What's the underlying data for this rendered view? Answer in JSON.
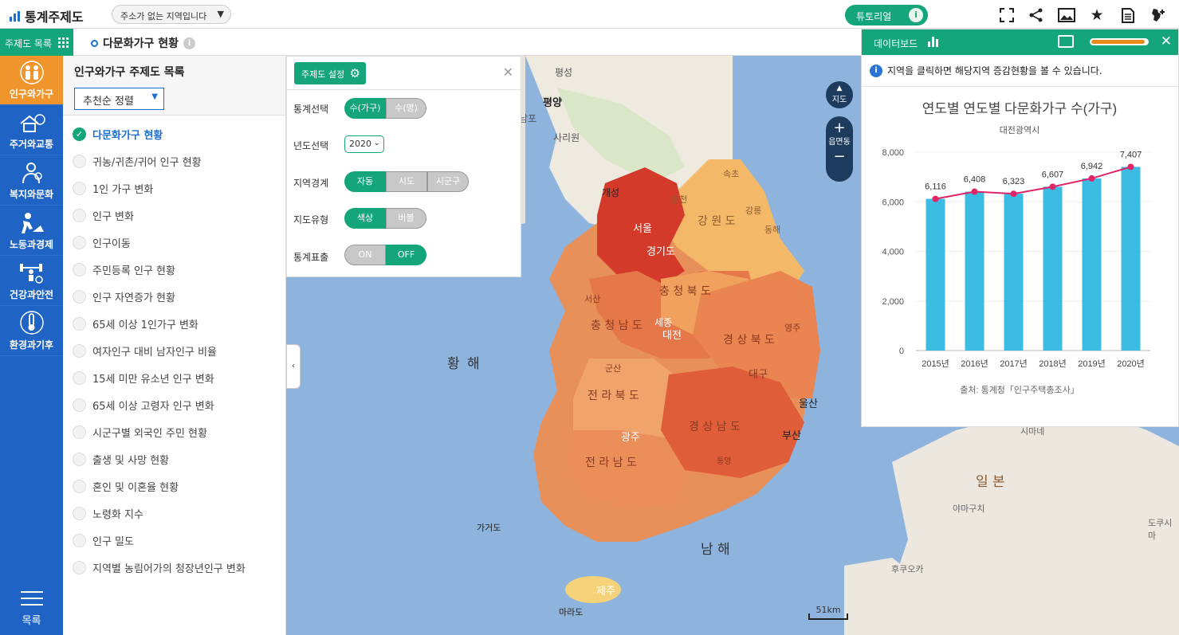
{
  "app": {
    "title": "통계주제도"
  },
  "address": {
    "value": "주소가 없는 지역입니다"
  },
  "tutorial": {
    "label": "튜토리얼"
  },
  "subbar": {
    "menu_label": "주제도 목록",
    "current_title": "다문화가구 현황"
  },
  "nav": {
    "items": [
      {
        "label": "인구와가구"
      },
      {
        "label": "주거와교통"
      },
      {
        "label": "복지와문화"
      },
      {
        "label": "노동과경제"
      },
      {
        "label": "건강과안전"
      },
      {
        "label": "환경과기후"
      }
    ],
    "bottom_label": "목록"
  },
  "list": {
    "title": "인구와가구 주제도 목록",
    "sort": "추천순 정렬",
    "items": [
      "다문화가구 현황",
      "귀농/귀촌/귀어 인구 현황",
      "1인 가구 변화",
      "인구 변화",
      "인구이동",
      "주민등록 인구 현황",
      "인구 자연증가 현황",
      "65세 이상 1인가구 변화",
      "여자인구 대비 남자인구 비율",
      "15세 미만 유소년 인구 변화",
      "65세 이상 고령자 인구 변화",
      "시군구별 외국인 주민 현황",
      "출생 및 사망 현황",
      "혼인 및 이혼율 현황",
      "노령화 지수",
      "인구 밀도",
      "지역별 농림어가의 청장년인구 변화"
    ]
  },
  "settings": {
    "button": "주제도 설정",
    "rows": {
      "stat": {
        "label": "통계선택",
        "options": [
          "수(가구)",
          "수(명)"
        ],
        "selected": "수(가구)"
      },
      "year": {
        "label": "년도선택",
        "value": "2020"
      },
      "region": {
        "label": "지역경계",
        "options": [
          "자동",
          "시도",
          "시군구"
        ],
        "selected": "자동"
      },
      "maptype": {
        "label": "지도유형",
        "options": [
          "색상",
          "버블"
        ],
        "selected": "색상"
      },
      "display": {
        "label": "통계표출",
        "options": [
          "ON",
          "OFF"
        ],
        "selected": "OFF"
      }
    }
  },
  "map": {
    "labels": {
      "pyeongyang": "평양",
      "pyeongseong": "평성",
      "nampo": "남포",
      "sariwon": "사리원",
      "kaesong": "개성",
      "chuncheon": "춘천",
      "seoul": "서울",
      "gyeonggi": "경기도",
      "gangwon": "강 원 도",
      "gangneung": "강릉",
      "donghae": "동해",
      "sokcho": "속초",
      "seosan": "서산",
      "chungbuk": "충 청 북 도",
      "chungnam": "충 청 남 도",
      "sejong": "세종",
      "daejeon": "대전",
      "yeongju": "영주",
      "gyeongbuk": "경 상 북 도",
      "daegu": "대구",
      "gunsan": "군산",
      "jeonbuk": "전 라 북 도",
      "ulsan": "울산",
      "busan": "부산",
      "gyeongnam": "경 상 남 도",
      "gwangju": "광주",
      "jeonnam": "전 라 남 도",
      "yellow_sea": "황 해",
      "south_sea": "남 해",
      "gageodo": "가거도",
      "jeju": "제주",
      "marado": "마라도",
      "japan": "일 본",
      "yamaguchi": "야마구치",
      "shimane": "시마네",
      "fukuoka": "후쿠오카",
      "tokushima": "도쿠시마",
      "tongyeong": "통영"
    },
    "controls": {
      "map_btn": "지도",
      "zoom_level": "읍면동",
      "zoom_in": "+",
      "zoom_out": "−"
    },
    "scale": "51km"
  },
  "dashboard": {
    "title": "데이터보드",
    "progress": 0.95,
    "note": "지역을 클릭하면 해당지역 증감현황을 볼 수 있습니다.",
    "source": "출처: 통계청「인구주택총조사」"
  },
  "chart_data": {
    "type": "bar",
    "title": "연도별 연도별 다문화가구 수(가구)",
    "subtitle": "대전광역시",
    "categories": [
      "2015년",
      "2016년",
      "2017년",
      "2018년",
      "2019년",
      "2020년"
    ],
    "series": [
      {
        "values": [
          6116,
          6408,
          6323,
          6607,
          6942,
          7407
        ]
      }
    ],
    "data_labels": [
      "6,116",
      "6,408",
      "6,323",
      "6,607",
      "6,942",
      "7,407"
    ],
    "yticks": [
      "0",
      "2,000",
      "4,000",
      "6,000",
      "8,000"
    ],
    "ylim": [
      0,
      8000
    ],
    "overlay": "line",
    "colors": {
      "bar": "#3bbde3",
      "line": "#e02466"
    }
  },
  "colors": {
    "accent": "#14a67a",
    "nav": "#1f64c4",
    "nav_active": "#f0942c"
  }
}
